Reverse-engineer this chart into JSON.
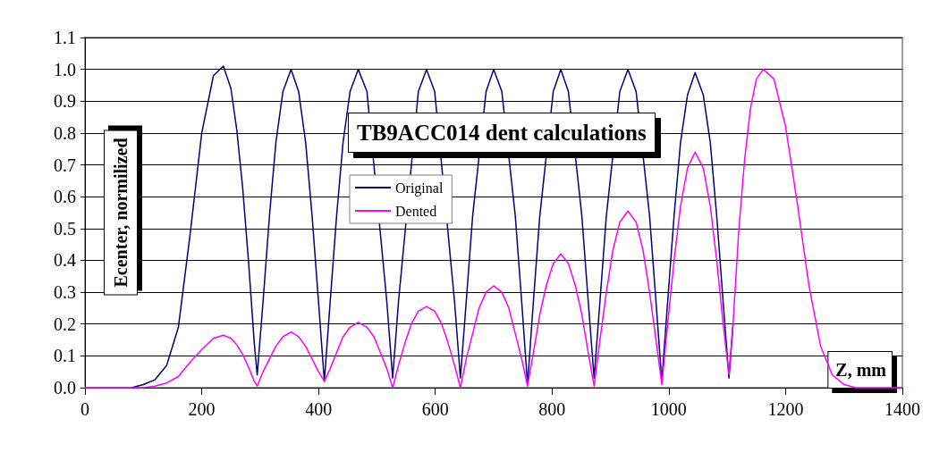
{
  "chart_data": {
    "type": "line",
    "title": "TB9ACC014 dent calculations",
    "xlabel": "Z, mm",
    "ylabel": "Ecenter, normilized",
    "xlim": [
      0,
      1400
    ],
    "xticks": [
      0,
      200,
      400,
      600,
      800,
      1000,
      1200,
      1400
    ],
    "ylim": [
      0,
      1.1
    ],
    "yticks": [
      {
        "value": 0,
        "label": "0.0"
      },
      {
        "value": 0.1,
        "label": "0.1"
      },
      {
        "value": 0.2,
        "label": "0.2"
      },
      {
        "value": 0.3,
        "label": "0.3"
      },
      {
        "value": 0.4,
        "label": "0.4"
      },
      {
        "value": 0.5,
        "label": "0.5"
      },
      {
        "value": 0.6,
        "label": "0.6"
      },
      {
        "value": 0.7,
        "label": "0.7"
      },
      {
        "value": 0.8,
        "label": "0.8"
      },
      {
        "value": 0.9,
        "label": "0.9"
      },
      {
        "value": 1,
        "label": "1.0"
      },
      {
        "value": 1.1,
        "label": "1.1"
      }
    ],
    "grid": "y",
    "legend": "center",
    "marker": "none",
    "line_style": "solid",
    "x": [
      0,
      50,
      80,
      100,
      120,
      140,
      160,
      180,
      200,
      220,
      237,
      250,
      260,
      270,
      280,
      290,
      295,
      305,
      316,
      327,
      339,
      353,
      366,
      378,
      389,
      400,
      410,
      420,
      431,
      442,
      454,
      468,
      483,
      495,
      506,
      517,
      527,
      537,
      548,
      559,
      571,
      585,
      599,
      611,
      622,
      633,
      643,
      653,
      664,
      675,
      687,
      700,
      714,
      726,
      737,
      748,
      758,
      768,
      779,
      790,
      802,
      815,
      828,
      840,
      851,
      862,
      872,
      882,
      893,
      904,
      916,
      930,
      944,
      956,
      967,
      978,
      988,
      998,
      1009,
      1020,
      1032,
      1045,
      1059,
      1071,
      1082,
      1093,
      1103,
      1110,
      1120,
      1130,
      1140,
      1150,
      1162,
      1180,
      1200,
      1220,
      1240,
      1260,
      1280,
      1300,
      1320,
      1400
    ],
    "series": [
      {
        "name": "Original",
        "color": "#000080",
        "values": [
          null,
          null,
          0,
          0.01,
          0.025,
          0.07,
          0.19,
          0.48,
          0.8,
          0.98,
          1.01,
          0.94,
          0.81,
          0.63,
          0.4,
          0.14,
          0.04,
          0.27,
          0.54,
          0.77,
          0.93,
          1.0,
          0.93,
          0.77,
          0.54,
          0.27,
          0.02,
          0.27,
          0.54,
          0.77,
          0.93,
          1.0,
          0.93,
          null,
          null,
          0.27,
          0.03,
          0.27,
          null,
          null,
          0.93,
          1.0,
          0.93,
          null,
          null,
          0.27,
          0.03,
          0.27,
          0.54,
          null,
          0.93,
          1.0,
          0.93,
          null,
          0.54,
          0.27,
          0.01,
          0.27,
          0.54,
          null,
          0.93,
          1.0,
          0.93,
          null,
          0.54,
          0.27,
          0.03,
          0.27,
          0.54,
          null,
          0.93,
          1.0,
          0.93,
          null,
          0.54,
          0.27,
          0.02,
          0.27,
          0.54,
          0.77,
          0.92,
          0.99,
          0.92,
          0.77,
          0.54,
          0.27,
          0.03,
          0.2,
          null,
          null,
          null,
          null,
          null,
          null,
          null,
          null,
          null,
          null,
          null,
          null,
          null,
          null
        ]
      },
      {
        "name": "Dented",
        "color": "#ff00ff",
        "values": [
          0,
          0,
          0,
          0,
          0.005,
          0.015,
          0.035,
          0.08,
          0.12,
          0.155,
          0.165,
          0.155,
          0.135,
          0.105,
          0.065,
          0.02,
          0.005,
          0.05,
          0.09,
          0.13,
          0.16,
          0.175,
          0.16,
          0.13,
          0.09,
          0.05,
          0.02,
          0.06,
          0.11,
          0.16,
          0.19,
          0.205,
          0.19,
          0.16,
          0.11,
          0.06,
          0,
          0.07,
          0.14,
          0.2,
          0.24,
          0.255,
          0.24,
          0.2,
          0.14,
          0.07,
          0,
          0.09,
          0.17,
          0.25,
          0.3,
          0.32,
          0.3,
          0.25,
          0.17,
          0.09,
          0.005,
          0.11,
          0.23,
          0.32,
          0.39,
          0.42,
          0.39,
          0.32,
          0.23,
          0.11,
          0.005,
          0.15,
          0.3,
          0.43,
          0.52,
          0.555,
          0.52,
          0.43,
          0.3,
          0.15,
          0.01,
          0.2,
          0.4,
          0.57,
          0.69,
          0.74,
          0.69,
          0.57,
          0.4,
          0.2,
          0.04,
          0.2,
          0.5,
          0.72,
          0.88,
          0.97,
          1.0,
          0.97,
          0.82,
          0.58,
          0.32,
          0.13,
          0.04,
          0.01,
          0,
          0
        ]
      }
    ]
  }
}
